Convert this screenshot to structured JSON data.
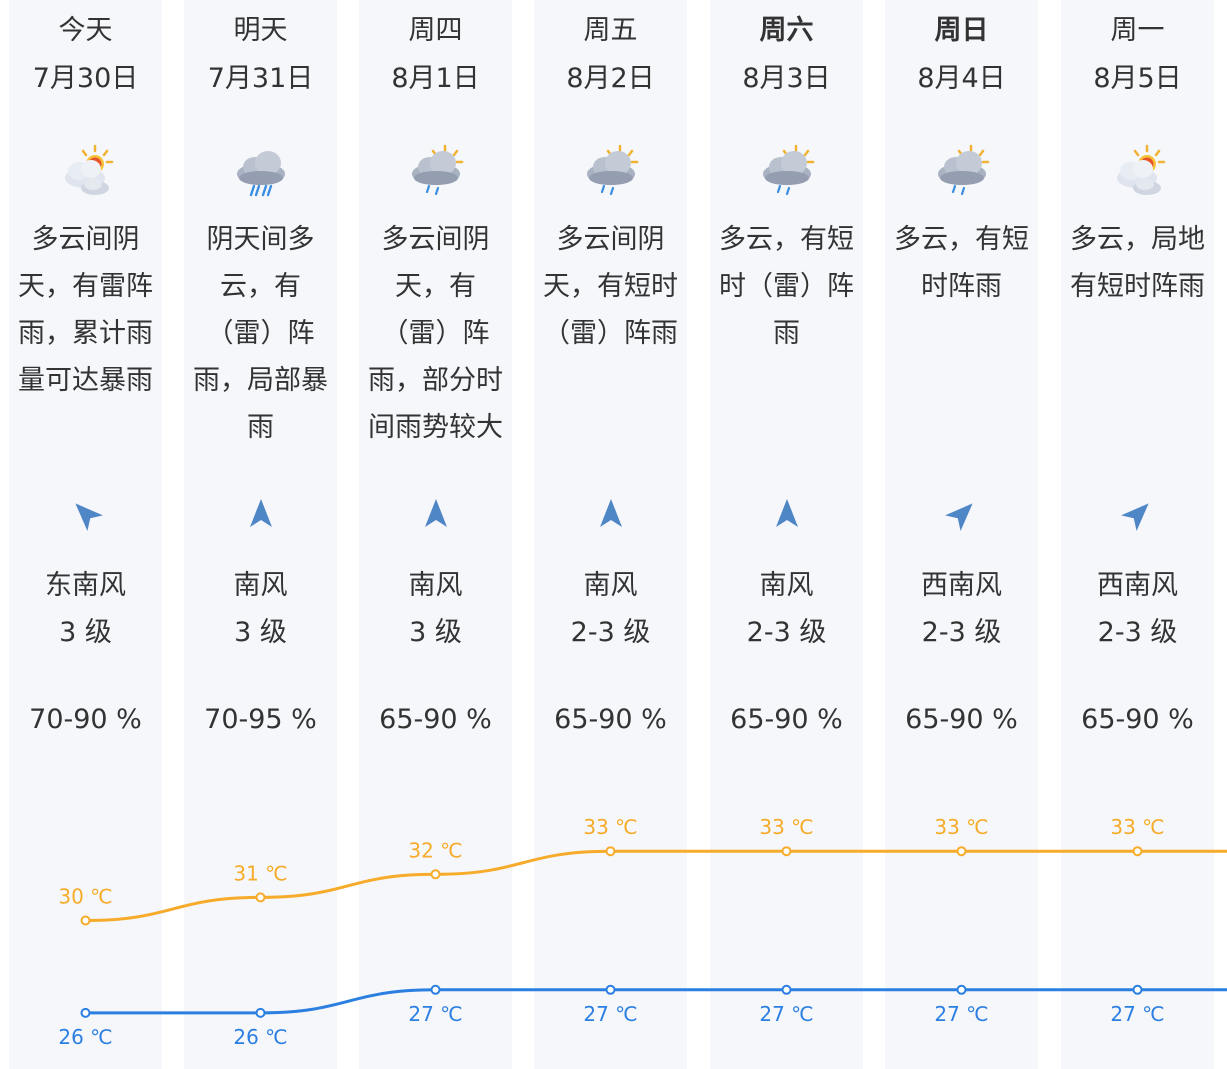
{
  "days": [
    {
      "day": "今天",
      "date": "7月30日",
      "desc": [
        "多云间阴",
        "天，有雷阵",
        "雨，累计雨",
        "量可达暴雨"
      ],
      "icon": "sun-cloud-icon",
      "wind_dir": "东南风",
      "wind_level": "3 级",
      "humidity": "70-90 %",
      "bold": false,
      "arrow_rot": 135
    },
    {
      "day": "明天",
      "date": "7月31日",
      "desc": [
        "阴天间多",
        "云，有",
        "（雷）阵",
        "雨，局部暴",
        "雨"
      ],
      "icon": "rain-cloud-icon",
      "wind_dir": "南风",
      "wind_level": "3 级",
      "humidity": "70-95 %",
      "bold": false,
      "arrow_rot": 180
    },
    {
      "day": "周四",
      "date": "8月1日",
      "desc": [
        "多云间阴",
        "天，有",
        "（雷）阵",
        "雨，部分时",
        "间雨势较大"
      ],
      "icon": "sun-rain-cloud-icon",
      "wind_dir": "南风",
      "wind_level": "3 级",
      "humidity": "65-90 %",
      "bold": false,
      "arrow_rot": 180
    },
    {
      "day": "周五",
      "date": "8月2日",
      "desc": [
        "多云间阴",
        "天，有短时",
        "（雷）阵雨"
      ],
      "icon": "sun-rain-cloud-icon",
      "wind_dir": "南风",
      "wind_level": "2-3 级",
      "humidity": "65-90 %",
      "bold": false,
      "arrow_rot": 180
    },
    {
      "day": "周六",
      "date": "8月3日",
      "desc": [
        "多云，有短",
        "时（雷）阵",
        "雨"
      ],
      "icon": "sun-rain-cloud-icon",
      "wind_dir": "南风",
      "wind_level": "2-3 级",
      "humidity": "65-90 %",
      "bold": true,
      "arrow_rot": 180
    },
    {
      "day": "周日",
      "date": "8月4日",
      "desc": [
        "多云，有短",
        "时阵雨"
      ],
      "icon": "sun-rain-cloud-icon",
      "wind_dir": "西南风",
      "wind_level": "2-3 级",
      "humidity": "65-90 %",
      "bold": true,
      "arrow_rot": 225
    },
    {
      "day": "周一",
      "date": "8月5日",
      "desc": [
        "多云，局地",
        "有短时阵雨"
      ],
      "icon": "sun-cloud-icon",
      "wind_dir": "西南风",
      "wind_level": "2-3 级",
      "humidity": "65-90 %",
      "bold": false,
      "arrow_rot": 225
    }
  ],
  "colors": {
    "high": "#f7ab2a",
    "low": "#2b7fe0",
    "column_bg": "#f5f7fb",
    "arrow": "#4f86c6"
  },
  "chart_data": {
    "type": "line",
    "categories": [
      "今天",
      "明天",
      "周四",
      "周五",
      "周六",
      "周日",
      "周一"
    ],
    "series": [
      {
        "values": [
          30,
          31,
          32,
          33,
          33,
          33,
          33
        ],
        "labels": [
          "30 ℃",
          "31 ℃",
          "32 ℃",
          "33 ℃",
          "33 ℃",
          "33 ℃",
          "33 ℃"
        ],
        "color": "#f7ab2a",
        "label_position": "above"
      },
      {
        "values": [
          26,
          26,
          27,
          27,
          27,
          27,
          27
        ],
        "labels": [
          "26 ℃",
          "26 ℃",
          "27 ℃",
          "27 ℃",
          "27 ℃",
          "27 ℃",
          "27 ℃"
        ],
        "color": "#2b7fe0",
        "label_position": "below"
      }
    ],
    "ylim": [
      25,
      35
    ],
    "grid": false,
    "legend": "none"
  }
}
